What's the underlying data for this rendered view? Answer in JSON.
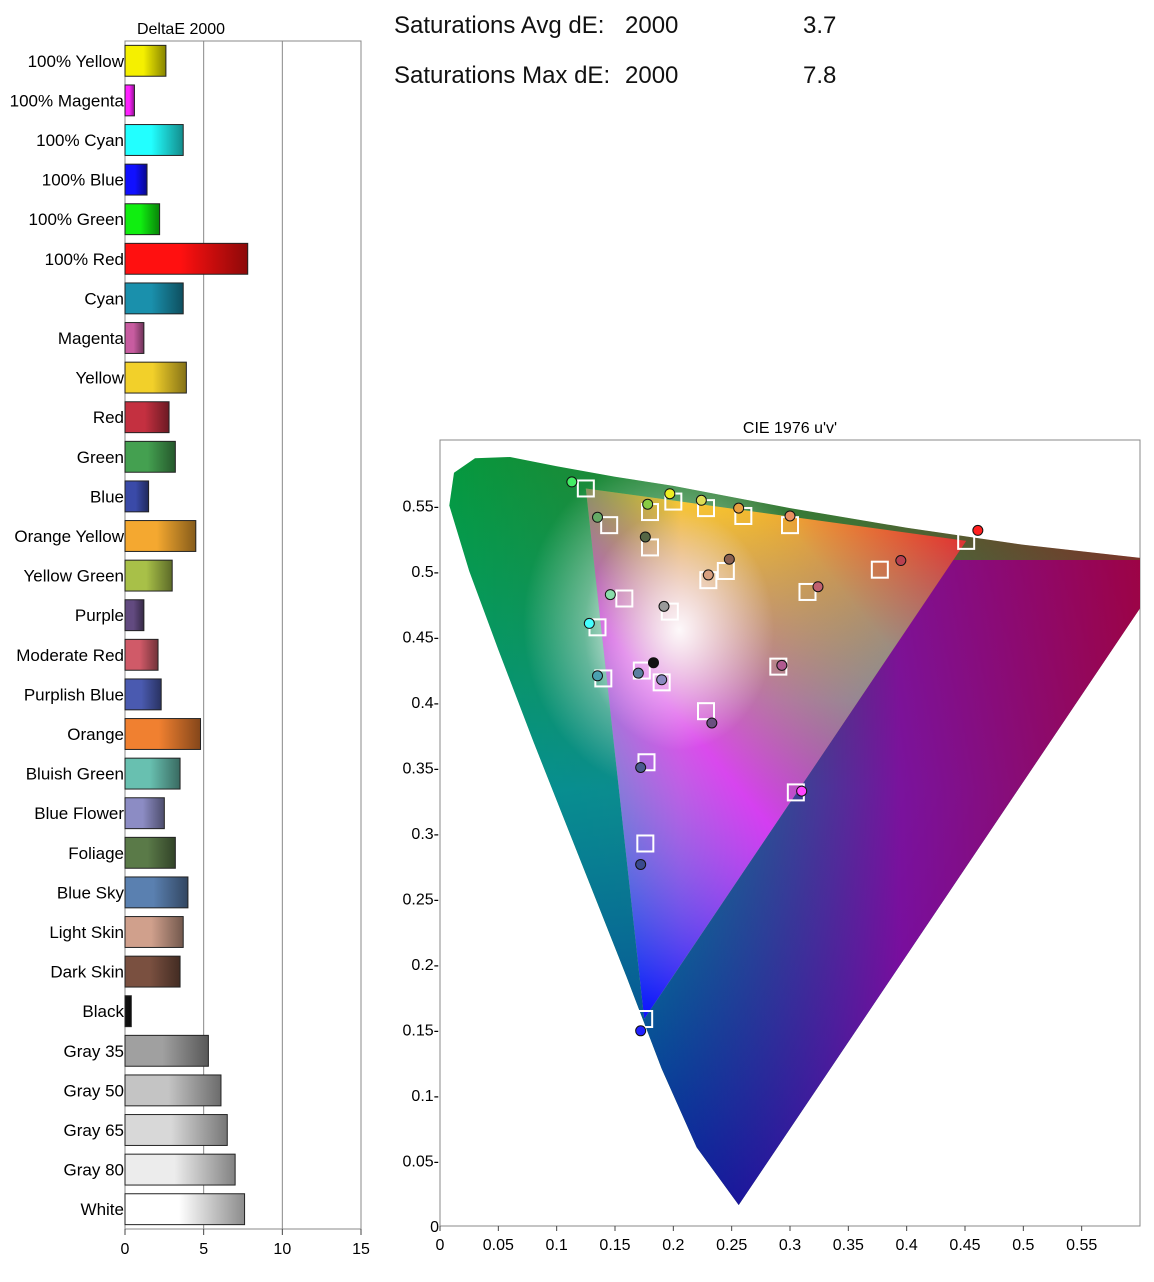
{
  "stats": {
    "avg": {
      "label": "Saturations Avg dE:",
      "standard": "2000",
      "value": "3.7"
    },
    "max": {
      "label": "Saturations Max dE:",
      "standard": "2000",
      "value": "7.8"
    }
  },
  "chart_data": [
    {
      "type": "bar",
      "orientation": "horizontal",
      "title": "DeltaE 2000",
      "xlim": [
        0,
        15
      ],
      "xticks": [
        "0",
        "5",
        "10",
        "15"
      ],
      "grid": true,
      "categories": [
        "100% Yellow",
        "100% Magenta",
        "100% Cyan",
        "100% Blue",
        "100% Green",
        "100% Red",
        "Cyan",
        "Magenta",
        "Yellow",
        "Red",
        "Green",
        "Blue",
        "Orange Yellow",
        "Yellow Green",
        "Purple",
        "Moderate Red",
        "Purplish Blue",
        "Orange",
        "Bluish Green",
        "Blue Flower",
        "Foliage",
        "Blue Sky",
        "Light Skin",
        "Dark Skin",
        "Black",
        "Gray 35",
        "Gray 50",
        "Gray 65",
        "Gray 80",
        "White"
      ],
      "values": [
        2.6,
        0.6,
        3.7,
        1.4,
        2.2,
        7.8,
        3.7,
        1.2,
        3.9,
        2.8,
        3.2,
        1.5,
        4.5,
        3.0,
        1.2,
        2.1,
        2.3,
        4.8,
        3.5,
        2.5,
        3.2,
        4.0,
        3.7,
        3.5,
        0.4,
        5.3,
        6.1,
        6.5,
        7.0,
        7.6
      ],
      "colors": [
        "#f5f000",
        "#ff22ff",
        "#22ffff",
        "#1010ff",
        "#10ee10",
        "#ff1010",
        "#1a90ac",
        "#c85ca0",
        "#f2d02a",
        "#c43040",
        "#44a050",
        "#3a4aa8",
        "#f4a830",
        "#a8c048",
        "#624a80",
        "#d05a68",
        "#4a5ab0",
        "#f08030",
        "#68c0b0",
        "#8c8cc4",
        "#5a7a48",
        "#5a80b0",
        "#d0a08c",
        "#7a5040",
        "#101010",
        "#a0a0a0",
        "#c4c4c4",
        "#d8d8d8",
        "#ececec",
        "#ffffff"
      ]
    },
    {
      "type": "scatter",
      "title": "CIE 1976 u'v'",
      "xlim": [
        0,
        0.6
      ],
      "ylim": [
        0,
        0.6
      ],
      "xticks": [
        "0",
        "0.05",
        "0.1",
        "0.15",
        "0.2",
        "0.25",
        "0.3",
        "0.35",
        "0.4",
        "0.45",
        "0.5",
        "0.55"
      ],
      "yticks": [
        "0",
        "0.05-",
        "0.1-",
        "0.15-",
        "0.2-",
        "0.25-",
        "0.3-",
        "0.35-",
        "0.4-",
        "0.45-",
        "0.5-",
        "0.55-"
      ],
      "gamut_triangle": [
        [
          0.451,
          0.523
        ],
        [
          0.125,
          0.563
        ],
        [
          0.175,
          0.158
        ]
      ],
      "targets": [
        [
          0.125,
          0.563
        ],
        [
          0.145,
          0.535
        ],
        [
          0.158,
          0.479
        ],
        [
          0.135,
          0.457
        ],
        [
          0.14,
          0.418
        ],
        [
          0.173,
          0.424
        ],
        [
          0.19,
          0.415
        ],
        [
          0.18,
          0.518
        ],
        [
          0.18,
          0.545
        ],
        [
          0.2,
          0.553
        ],
        [
          0.228,
          0.548
        ],
        [
          0.26,
          0.542
        ],
        [
          0.3,
          0.535
        ],
        [
          0.197,
          0.469
        ],
        [
          0.23,
          0.493
        ],
        [
          0.245,
          0.5
        ],
        [
          0.315,
          0.484
        ],
        [
          0.377,
          0.501
        ],
        [
          0.451,
          0.523
        ],
        [
          0.29,
          0.427
        ],
        [
          0.228,
          0.393
        ],
        [
          0.177,
          0.354
        ],
        [
          0.305,
          0.331
        ],
        [
          0.176,
          0.292
        ],
        [
          0.175,
          0.158
        ]
      ],
      "measured": [
        {
          "u": 0.113,
          "v": 0.568,
          "color": "#44ee66"
        },
        {
          "u": 0.135,
          "v": 0.541,
          "color": "#66aa66"
        },
        {
          "u": 0.178,
          "v": 0.551,
          "color": "#88cc44"
        },
        {
          "u": 0.197,
          "v": 0.559,
          "color": "#eeee22"
        },
        {
          "u": 0.224,
          "v": 0.554,
          "color": "#dddd55"
        },
        {
          "u": 0.256,
          "v": 0.548,
          "color": "#e8a040"
        },
        {
          "u": 0.3,
          "v": 0.542,
          "color": "#e89060"
        },
        {
          "u": 0.176,
          "v": 0.526,
          "color": "#556644"
        },
        {
          "u": 0.146,
          "v": 0.482,
          "color": "#88ddaa"
        },
        {
          "u": 0.128,
          "v": 0.46,
          "color": "#44ffff"
        },
        {
          "u": 0.192,
          "v": 0.473,
          "color": "#9a9a9a"
        },
        {
          "u": 0.23,
          "v": 0.497,
          "color": "#d8a080"
        },
        {
          "u": 0.248,
          "v": 0.509,
          "color": "#8a6050"
        },
        {
          "u": 0.324,
          "v": 0.488,
          "color": "#c06070"
        },
        {
          "u": 0.395,
          "v": 0.508,
          "color": "#b84050"
        },
        {
          "u": 0.461,
          "v": 0.531,
          "color": "#ff2020"
        },
        {
          "u": 0.135,
          "v": 0.42,
          "color": "#4aa0b0"
        },
        {
          "u": 0.17,
          "v": 0.422,
          "color": "#5a80a0"
        },
        {
          "u": 0.183,
          "v": 0.43,
          "color": "#111111"
        },
        {
          "u": 0.19,
          "v": 0.417,
          "color": "#8a8ac0"
        },
        {
          "u": 0.293,
          "v": 0.428,
          "color": "#b05a90"
        },
        {
          "u": 0.233,
          "v": 0.384,
          "color": "#6a5080"
        },
        {
          "u": 0.172,
          "v": 0.35,
          "color": "#4a5a90"
        },
        {
          "u": 0.31,
          "v": 0.332,
          "color": "#ff44ff"
        },
        {
          "u": 0.172,
          "v": 0.276,
          "color": "#3a4a90"
        },
        {
          "u": 0.172,
          "v": 0.149,
          "color": "#2020ff"
        }
      ]
    }
  ]
}
